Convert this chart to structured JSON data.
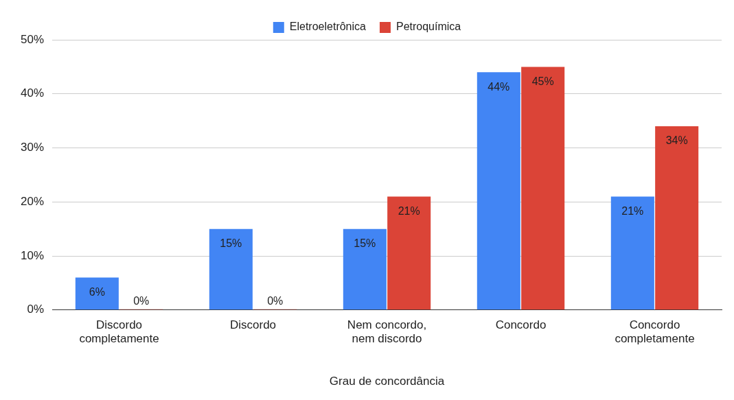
{
  "chart_data": {
    "type": "bar",
    "xlabel": "Grau de concordância",
    "categories": [
      "Discordo completamente",
      "Discordo",
      "Nem concordo, nem discordo",
      "Concordo",
      "Concordo completamente"
    ],
    "series": [
      {
        "name": "Eletroeletrônica",
        "color": "#4285f4",
        "values": [
          6,
          15,
          15,
          44,
          21
        ],
        "value_labels": [
          "6%",
          "15%",
          "15%",
          "44%",
          "21%"
        ]
      },
      {
        "name": "Petroquímica",
        "color": "#db4437",
        "values": [
          0,
          0,
          21,
          45,
          34
        ],
        "value_labels": [
          "0%",
          "0%",
          "21%",
          "45%",
          "34%"
        ]
      }
    ],
    "ylim": [
      0,
      50
    ],
    "yticks": [
      {
        "value": 0,
        "label": "0%"
      },
      {
        "value": 10,
        "label": "10%"
      },
      {
        "value": 20,
        "label": "20%"
      },
      {
        "value": 30,
        "label": "30%"
      },
      {
        "value": 40,
        "label": "40%"
      },
      {
        "value": 50,
        "label": "50%"
      }
    ],
    "grid": "y",
    "legend": "top"
  }
}
